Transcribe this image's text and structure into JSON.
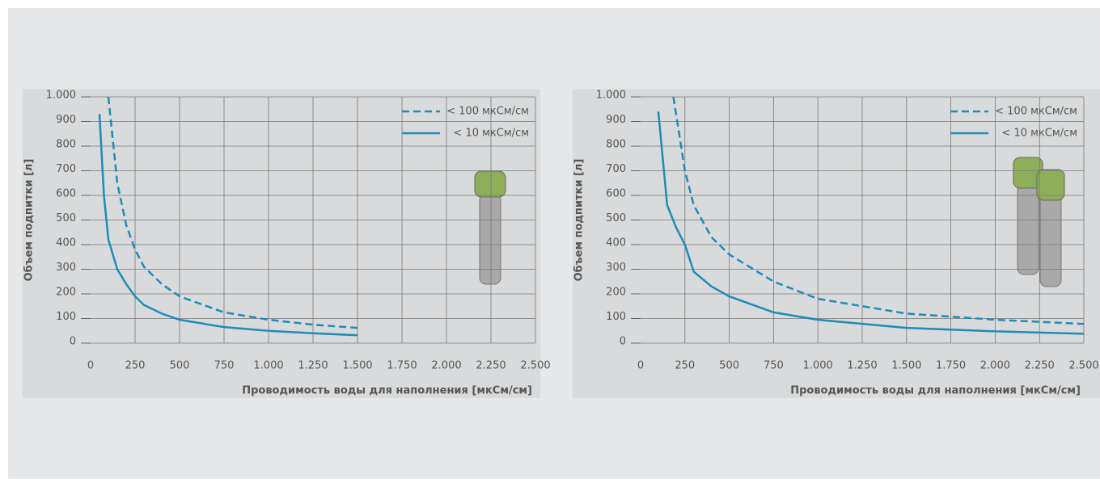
{
  "chart_data": [
    {
      "type": "line",
      "y_label": "Объем подпитки [л]",
      "x_label": "Проводимость воды для наполнения [мкСм/см]",
      "xlim": [
        0,
        2500
      ],
      "ylim": [
        0,
        1000
      ],
      "grid": true,
      "legend": "top-right",
      "xticks": [
        0,
        250,
        500,
        750,
        {
          "value": 1000,
          "label": "1.000"
        },
        {
          "value": 1250,
          "label": "1.250"
        },
        {
          "value": 1500,
          "label": "1.500"
        },
        {
          "value": 1750,
          "label": "1.750"
        },
        {
          "value": 2000,
          "label": "2.000"
        },
        {
          "value": 2250,
          "label": "2.250"
        },
        {
          "value": 2500,
          "label": "2.500"
        }
      ],
      "yticks": [
        0,
        100,
        200,
        300,
        400,
        500,
        600,
        700,
        800,
        900,
        {
          "value": 1000,
          "label": "1.000"
        }
      ],
      "series": [
        {
          "name": "< 100 мкСм/см",
          "color": "#1d8cb8",
          "style": "dashed",
          "x": [
            100,
            150,
            200,
            250,
            300,
            400,
            500,
            750,
            1000,
            1250,
            1500
          ],
          "values": [
            1000,
            650,
            480,
            380,
            310,
            240,
            190,
            125,
            95,
            75,
            62
          ]
        },
        {
          "name": "< 10 мкСм/см",
          "color": "#1d8cb8",
          "style": "solid",
          "x": [
            50,
            75,
            100,
            150,
            200,
            250,
            300,
            400,
            500,
            750,
            1000,
            1250,
            1500
          ],
          "values": [
            930,
            600,
            420,
            300,
            240,
            190,
            155,
            120,
            95,
            65,
            50,
            40,
            32
          ]
        }
      ]
    },
    {
      "type": "line",
      "y_label": "Объем подпитки [л]",
      "x_label": "Проводимость воды для наполнения [мкСм/см]",
      "xlim": [
        0,
        2500
      ],
      "ylim": [
        0,
        1000
      ],
      "grid": true,
      "legend": "top-right",
      "xticks": [
        0,
        250,
        500,
        750,
        {
          "value": 1000,
          "label": "1.000"
        },
        {
          "value": 1250,
          "label": "1.250"
        },
        {
          "value": 1500,
          "label": "1.500"
        },
        {
          "value": 1750,
          "label": "1.750"
        },
        {
          "value": 2000,
          "label": "2.000"
        },
        {
          "value": 2250,
          "label": "2.250"
        },
        {
          "value": 2500,
          "label": "2.500"
        }
      ],
      "yticks": [
        0,
        100,
        200,
        300,
        400,
        500,
        600,
        700,
        800,
        900,
        {
          "value": 1000,
          "label": "1.000"
        }
      ],
      "series": [
        {
          "name": "< 100 мкСм/см",
          "color": "#1d8cb8",
          "style": "dashed",
          "x": [
            185,
            250,
            300,
            400,
            500,
            750,
            1000,
            1250,
            1500,
            2000,
            2500
          ],
          "values": [
            1000,
            700,
            560,
            430,
            360,
            250,
            180,
            150,
            120,
            95,
            78
          ]
        },
        {
          "name": "< 10 мкСм/см",
          "color": "#1d8cb8",
          "style": "solid",
          "x": [
            100,
            150,
            200,
            250,
            300,
            400,
            500,
            750,
            1000,
            1500,
            2000,
            2500
          ],
          "values": [
            940,
            560,
            470,
            400,
            290,
            230,
            190,
            125,
            95,
            62,
            48,
            38
          ]
        }
      ]
    }
  ]
}
